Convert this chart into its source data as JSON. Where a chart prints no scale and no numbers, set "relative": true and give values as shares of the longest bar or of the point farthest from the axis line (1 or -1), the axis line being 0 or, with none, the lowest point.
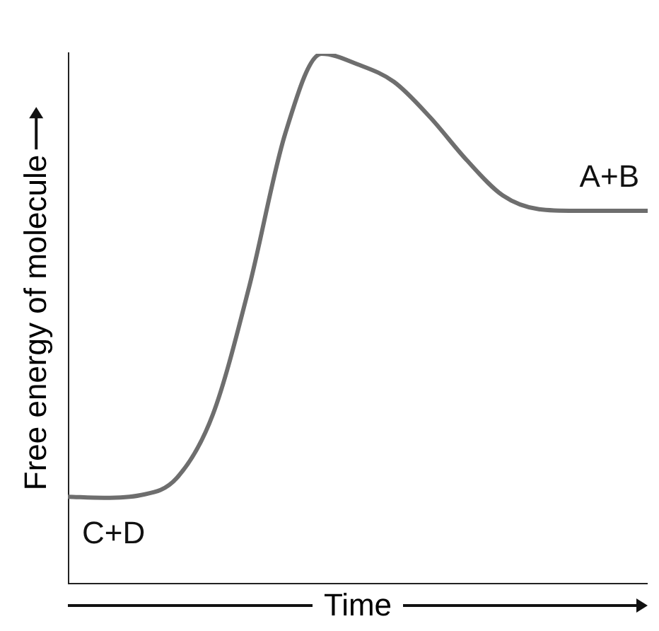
{
  "chart_data": {
    "type": "line",
    "relative": true,
    "xlabel": "Time",
    "ylabel": "Free energy of molecule",
    "color": "#6e6e6e",
    "categories": [
      null,
      null,
      null,
      null,
      null,
      null,
      null,
      null,
      null,
      null,
      null,
      null,
      null,
      null,
      null,
      null,
      null
    ],
    "values": [
      0.165,
      0.163,
      0.168,
      0.2,
      0.32,
      0.56,
      0.85,
      1.0,
      0.98,
      0.947,
      0.88,
      0.8,
      0.733,
      0.707,
      0.704,
      0.704,
      0.704
    ],
    "annotations": [
      "C+D",
      "A+B"
    ],
    "grid": false,
    "legend": false,
    "marker": "none",
    "line_style": "solid"
  }
}
